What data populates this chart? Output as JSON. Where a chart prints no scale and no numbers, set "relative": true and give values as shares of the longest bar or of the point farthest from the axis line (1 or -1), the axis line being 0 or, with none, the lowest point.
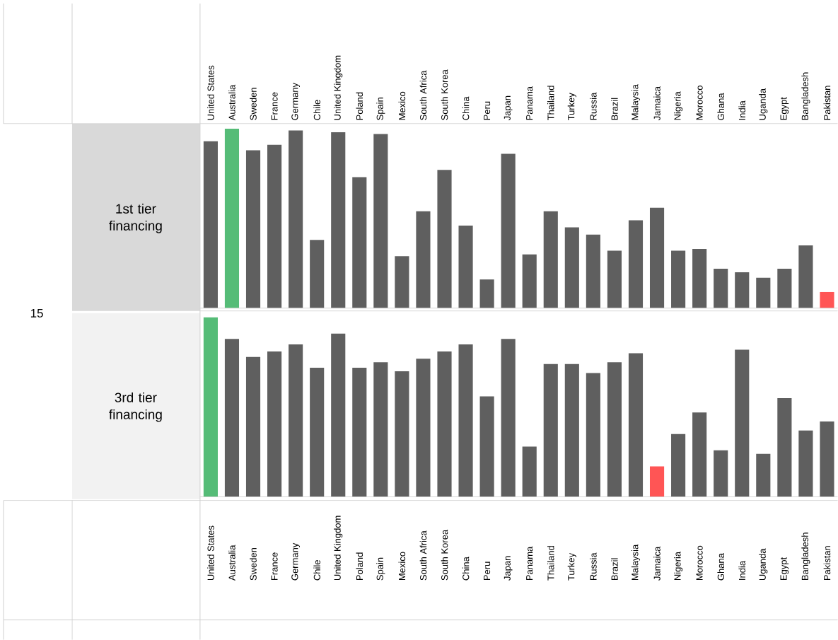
{
  "chart_data": [
    {
      "type": "bar",
      "relative": true,
      "ylabel": "1st tier financing",
      "annotations": [
        "15"
      ],
      "categories": [
        "United States",
        "Australia",
        "Sweden",
        "France",
        "Germany",
        "Chile",
        "United Kingdom",
        "Poland",
        "Spain",
        "Mexico",
        "South Africa",
        "South Korea",
        "China",
        "Peru",
        "Japan",
        "Panama",
        "Thailand",
        "Turkey",
        "Russia",
        "Brazil",
        "Malaysia",
        "Jamaica",
        "Nigeria",
        "Morocco",
        "Ghana",
        "India",
        "Uganda",
        "Egypt",
        "Bangladesh",
        "Pakistan"
      ],
      "values": [
        0.93,
        1,
        0.88,
        0.91,
        0.99,
        0.38,
        0.98,
        0.73,
        0.97,
        0.29,
        0.54,
        0.77,
        0.46,
        0.16,
        0.86,
        0.3,
        0.54,
        0.45,
        0.41,
        0.32,
        0.49,
        0.56,
        0.32,
        0.33,
        0.22,
        0.2,
        0.17,
        0.22,
        0.35,
        0.09
      ],
      "colors": [
        "#5f5f5f",
        "#55bc77",
        "#5f5f5f",
        "#5f5f5f",
        "#5f5f5f",
        "#5f5f5f",
        "#5f5f5f",
        "#5f5f5f",
        "#5f5f5f",
        "#5f5f5f",
        "#5f5f5f",
        "#5f5f5f",
        "#5f5f5f",
        "#5f5f5f",
        "#5f5f5f",
        "#5f5f5f",
        "#5f5f5f",
        "#5f5f5f",
        "#5f5f5f",
        "#5f5f5f",
        "#5f5f5f",
        "#5f5f5f",
        "#5f5f5f",
        "#5f5f5f",
        "#5f5f5f",
        "#5f5f5f",
        "#5f5f5f",
        "#5f5f5f",
        "#5f5f5f",
        "#ff5555"
      ]
    },
    {
      "type": "bar",
      "relative": true,
      "ylabel": "3rd tier financing",
      "categories": [
        "United States",
        "Australia",
        "Sweden",
        "France",
        "Germany",
        "Chile",
        "United Kingdom",
        "Poland",
        "Spain",
        "Mexico",
        "South Africa",
        "South Korea",
        "China",
        "Peru",
        "Japan",
        "Panama",
        "Thailand",
        "Turkey",
        "Russia",
        "Brazil",
        "Malaysia",
        "Jamaica",
        "Nigeria",
        "Morocco",
        "Ghana",
        "India",
        "Uganda",
        "Egypt",
        "Bangladesh",
        "Pakistan"
      ],
      "values": [
        1,
        0.88,
        0.78,
        0.81,
        0.85,
        0.72,
        0.91,
        0.72,
        0.75,
        0.7,
        0.77,
        0.81,
        0.85,
        0.56,
        0.88,
        0.28,
        0.74,
        0.74,
        0.69,
        0.75,
        0.8,
        0.17,
        0.35,
        0.47,
        0.26,
        0.82,
        0.24,
        0.55,
        0.37,
        0.42
      ],
      "colors": [
        "#55bc77",
        "#5f5f5f",
        "#5f5f5f",
        "#5f5f5f",
        "#5f5f5f",
        "#5f5f5f",
        "#5f5f5f",
        "#5f5f5f",
        "#5f5f5f",
        "#5f5f5f",
        "#5f5f5f",
        "#5f5f5f",
        "#5f5f5f",
        "#5f5f5f",
        "#5f5f5f",
        "#5f5f5f",
        "#5f5f5f",
        "#5f5f5f",
        "#5f5f5f",
        "#5f5f5f",
        "#5f5f5f",
        "#ff5555",
        "#5f5f5f",
        "#5f5f5f",
        "#5f5f5f",
        "#5f5f5f",
        "#5f5f5f",
        "#5f5f5f",
        "#5f5f5f",
        "#5f5f5f"
      ]
    }
  ]
}
